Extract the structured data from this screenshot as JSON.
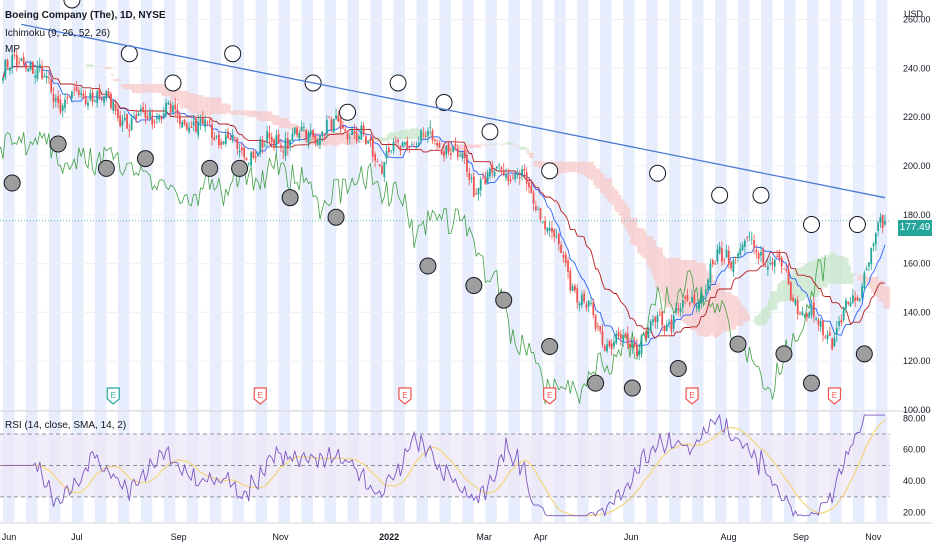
{
  "header": {
    "title": "Boeing Company (The), 1D, NYSE",
    "ichimoku": "Ichimoku (9, 26, 52, 26)",
    "mp": "MP",
    "rsi": "RSI (14, close, SMA, 14, 2)",
    "currency": "USD",
    "last_price": "177.49"
  },
  "colors": {
    "up": "#26a69a",
    "down": "#ef5350",
    "trendline": "#4a7bd4",
    "stripe": "#e3eafc",
    "rsi": "#7e57c2",
    "rsi_ma": "#f2d57c",
    "cloud_up": "#c8e6c9",
    "cloud_down": "#f8c9c9"
  },
  "chart_data": [
    {
      "type": "candlestick",
      "title": "Boeing Company (The), 1D, NYSE",
      "y_tick_labels": [
        "260.00",
        "240.00",
        "220.00",
        "200.00",
        "180.00",
        "160.00",
        "140.00",
        "120.00",
        "100.00"
      ],
      "y_ticks": [
        260,
        240,
        220,
        200,
        180,
        160,
        140,
        120,
        100
      ],
      "x_tick_labels": [
        "Jun",
        "Jul",
        "Sep",
        "Nov",
        "2022",
        "Mar",
        "Apr",
        "Jun",
        "Aug",
        "Sep",
        "Nov"
      ],
      "ylim": [
        100,
        268
      ],
      "grid": true,
      "close_anchors": [
        {
          "t": 0,
          "v": 238
        },
        {
          "t": 10,
          "v": 244
        },
        {
          "t": 25,
          "v": 226
        },
        {
          "t": 40,
          "v": 230
        },
        {
          "t": 55,
          "v": 218
        },
        {
          "t": 70,
          "v": 222
        },
        {
          "t": 90,
          "v": 215
        },
        {
          "t": 105,
          "v": 205
        },
        {
          "t": 120,
          "v": 210
        },
        {
          "t": 135,
          "v": 214
        },
        {
          "t": 150,
          "v": 216
        },
        {
          "t": 165,
          "v": 202
        },
        {
          "t": 180,
          "v": 212
        },
        {
          "t": 195,
          "v": 208
        },
        {
          "t": 205,
          "v": 192
        },
        {
          "t": 218,
          "v": 200
        },
        {
          "t": 228,
          "v": 192
        },
        {
          "t": 240,
          "v": 170
        },
        {
          "t": 252,
          "v": 145
        },
        {
          "t": 262,
          "v": 128
        },
        {
          "t": 275,
          "v": 126
        },
        {
          "t": 285,
          "v": 135
        },
        {
          "t": 300,
          "v": 143
        },
        {
          "t": 312,
          "v": 162
        },
        {
          "t": 325,
          "v": 168
        },
        {
          "t": 338,
          "v": 158
        },
        {
          "t": 350,
          "v": 138
        },
        {
          "t": 362,
          "v": 130
        },
        {
          "t": 372,
          "v": 148
        },
        {
          "t": 378,
          "v": 165
        },
        {
          "t": 384,
          "v": 177.49
        }
      ],
      "trendline": {
        "from": {
          "t": 8,
          "v": 258
        },
        "to": {
          "t": 384,
          "v": 187
        }
      },
      "last_close": 177.49,
      "earnings_markers": [
        "E",
        "E",
        "E",
        "E",
        "E",
        "E"
      ],
      "series": [
        {
          "name": "Ichimoku (9, 26, 52, 26)"
        },
        {
          "name": "MP"
        }
      ]
    },
    {
      "type": "line",
      "title": "RSI (14, close, SMA, 14, 2)",
      "y_tick_labels": [
        "80.00",
        "60.00",
        "40.00",
        "20.00"
      ],
      "y_ticks": [
        80,
        60,
        40,
        20
      ],
      "levels": [
        70,
        50,
        30
      ],
      "ylim": [
        14,
        84
      ]
    }
  ]
}
